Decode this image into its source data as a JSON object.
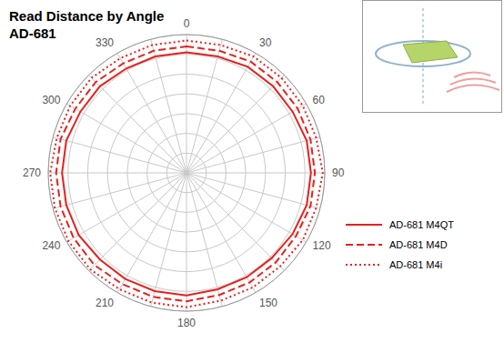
{
  "chart_data": {
    "type": "radar",
    "title": "Read Distance by Angle",
    "subtitle": "AD-681",
    "categories": [
      "0",
      null,
      "30",
      null,
      "60",
      null,
      "90",
      null,
      "120",
      null,
      "150",
      null,
      "180",
      null,
      "210",
      null,
      "240",
      null,
      "270",
      null,
      "300",
      null,
      "330",
      null
    ],
    "series": [
      {
        "name": "AD-681 M4QT",
        "color": "#e8201c",
        "line_style": "solid",
        "values": [
          6.1,
          6.1,
          6.2,
          6.2,
          6.2,
          6.3,
          6.3,
          6.3,
          6.2,
          6.1,
          6.1,
          6.1,
          6.2,
          6.2,
          6.2,
          6.2,
          6.3,
          6.3,
          6.3,
          6.3,
          6.2,
          6.2,
          6.1,
          6.1
        ]
      },
      {
        "name": "AD-681 M4D",
        "color": "#e8201c",
        "line_style": "dashed",
        "values": [
          6.4,
          6.4,
          6.5,
          6.5,
          6.5,
          6.5,
          6.5,
          6.5,
          6.4,
          6.4,
          6.4,
          6.4,
          6.5,
          6.5,
          6.5,
          6.6,
          6.6,
          6.6,
          6.6,
          6.6,
          6.5,
          6.5,
          6.4,
          6.4
        ]
      },
      {
        "name": "AD-681 M4i",
        "color": "#e8201c",
        "line_style": "dotted",
        "values": [
          6.7,
          6.7,
          6.8,
          6.8,
          6.8,
          6.8,
          6.9,
          6.8,
          6.8,
          6.7,
          6.7,
          6.7,
          6.8,
          6.8,
          6.8,
          6.9,
          6.9,
          6.9,
          6.9,
          6.8,
          6.8,
          6.8,
          6.7,
          6.7
        ]
      }
    ],
    "ylim": [
      0,
      7
    ],
    "yticks": [
      0,
      1,
      2,
      3,
      4,
      5,
      6,
      7
    ],
    "grid": true,
    "tick_labels": "x",
    "legend": "right"
  }
}
